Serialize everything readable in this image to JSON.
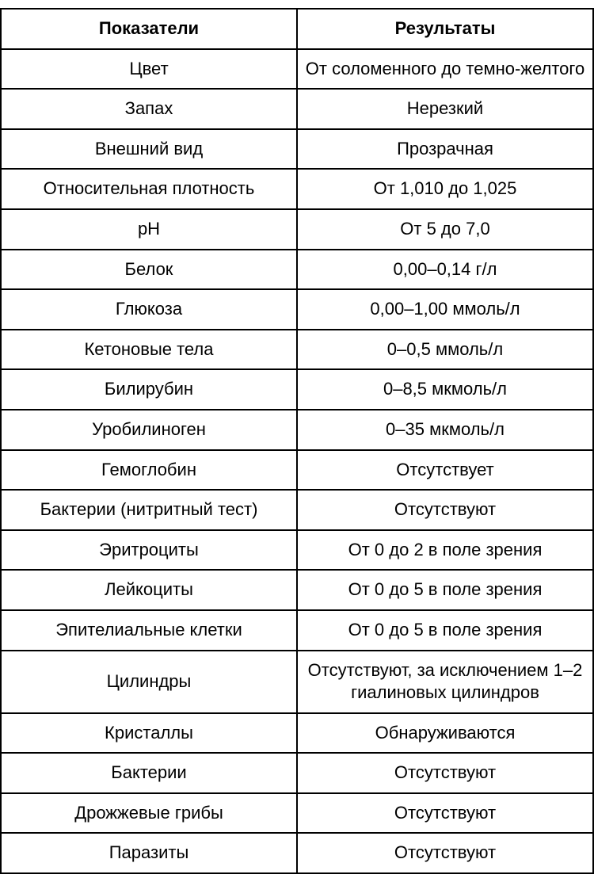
{
  "table": {
    "type": "table",
    "columns": [
      "Показатели",
      "Результаты"
    ],
    "column_widths": [
      "50%",
      "50%"
    ],
    "header_fontweight": "bold",
    "cell_fontsize": 22,
    "border_color": "#000000",
    "border_width": 2,
    "background_color": "#ffffff",
    "text_align": "center",
    "rows": [
      {
        "indicator": "Цвет",
        "result": "От соломенного до темно-желтого"
      },
      {
        "indicator": "Запах",
        "result": "Нерезкий"
      },
      {
        "indicator": "Внешний вид",
        "result": "Прозрачная"
      },
      {
        "indicator": "Относительная плотность",
        "result": "От 1,010 до 1,025"
      },
      {
        "indicator": "pH",
        "result": "От 5 до 7,0"
      },
      {
        "indicator": "Белок",
        "result": "0,00–0,14 г/л"
      },
      {
        "indicator": "Глюкоза",
        "result": "0,00–1,00 ммоль/л"
      },
      {
        "indicator": "Кетоновые тела",
        "result": "0–0,5 ммоль/л"
      },
      {
        "indicator": "Билирубин",
        "result": "0–8,5 мкмоль/л"
      },
      {
        "indicator": "Уробилиноген",
        "result": "0–35 мкмоль/л"
      },
      {
        "indicator": "Гемоглобин",
        "result": "Отсутствует"
      },
      {
        "indicator": "Бактерии (нитритный тест)",
        "result": "Отсутствуют"
      },
      {
        "indicator": "Эритроциты",
        "result": "От 0 до 2 в поле зрения"
      },
      {
        "indicator": "Лейкоциты",
        "result": "От 0 до 5 в поле зрения"
      },
      {
        "indicator": "Эпителиальные клетки",
        "result": "От 0 до 5 в поле зрения"
      },
      {
        "indicator": "Цилиндры",
        "result": "Отсутствуют, за исключением 1–2 гиалиновых цилиндров"
      },
      {
        "indicator": "Кристаллы",
        "result": "Обнаруживаются"
      },
      {
        "indicator": "Бактерии",
        "result": "Отсутствуют"
      },
      {
        "indicator": "Дрожжевые грибы",
        "result": "Отсутствуют"
      },
      {
        "indicator": "Паразиты",
        "result": "Отсутствуют"
      }
    ]
  }
}
